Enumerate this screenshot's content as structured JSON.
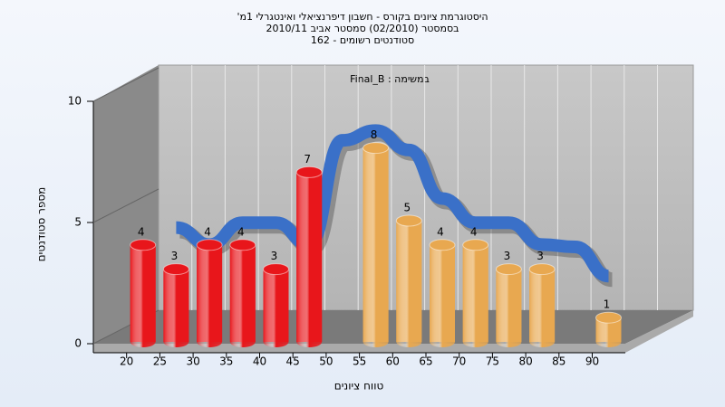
{
  "chart_data": {
    "type": "bar3d",
    "title": "היסטוגרמת ציונים בקורס - חשבון דיפרנציאלי ואינטגרלי 1מ'",
    "subtitle_lines": [
      "בסמסטר (02/2010) סמסטר אביב 2010/11",
      "סטודנטים רשומים - 162"
    ],
    "annotation": "במשימה : Final_B",
    "x_label": "טווח ציונים",
    "y_label": "מספר סטודנטים",
    "categories": [
      "20",
      "25",
      "30",
      "35",
      "40",
      "45",
      "50",
      "55",
      "60",
      "65",
      "70",
      "75",
      "80",
      "85",
      "90"
    ],
    "values": [
      4,
      3,
      4,
      4,
      3,
      7,
      null,
      8,
      5,
      4,
      4,
      3,
      3,
      null,
      1
    ],
    "bar_colors": [
      "#e8161b",
      "#e8161b",
      "#e8161b",
      "#e8161b",
      "#e8161b",
      "#e8161b",
      "#e8161b",
      "#e8a850",
      "#e8a850",
      "#e8a850",
      "#e8a850",
      "#e8a850",
      "#e8a850",
      "#e8a850",
      "#e8a850"
    ],
    "trend": {
      "color": "#3a70c8",
      "values": [
        null,
        4.1,
        3.4,
        4.3,
        4.3,
        3.4,
        7.7,
        8.1,
        7.3,
        5.3,
        4.3,
        4.3,
        3.4,
        3.3,
        2.1
      ]
    },
    "ylim": [
      0,
      10
    ],
    "yticks": [
      0,
      5,
      10
    ],
    "grid": true
  }
}
